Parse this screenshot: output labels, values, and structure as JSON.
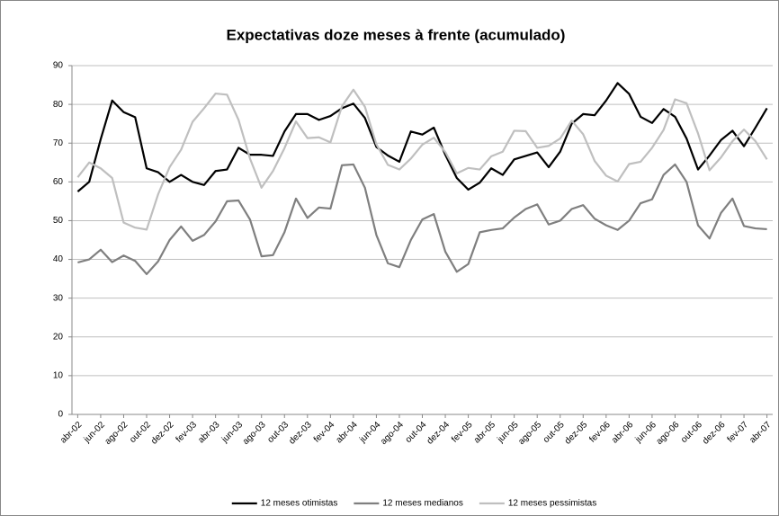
{
  "chart_data": {
    "type": "line",
    "title": "Expectativas doze meses à frente (acumulado)",
    "categories": [
      "abr-02",
      null,
      "jun-02",
      null,
      "ago-02",
      null,
      "out-02",
      null,
      "dez-02",
      null,
      "fev-03",
      null,
      "abr-03",
      null,
      "jun-03",
      null,
      "ago-03",
      null,
      "out-03",
      null,
      "dez-03",
      null,
      "fev-04",
      null,
      "abr-04",
      null,
      "jun-04",
      null,
      "ago-04",
      null,
      "out-04",
      null,
      "dez-04",
      null,
      "fev-05",
      null,
      "abr-05",
      null,
      "jun-05",
      null,
      "ago-05",
      null,
      "out-05",
      null,
      "dez-05",
      null,
      "fev-06",
      null,
      "abr-06",
      null,
      "jun-06",
      null,
      "ago-06",
      null,
      "out-06",
      null,
      "dez-06",
      null,
      "fev-07",
      null,
      "abr-07"
    ],
    "series": [
      {
        "name": "12 meses otimistas",
        "color": "#000000",
        "values": [
          57.5,
          60,
          71,
          81,
          78,
          76.7,
          63.5,
          62.5,
          60,
          61.8,
          60,
          59.2,
          62.8,
          63.2,
          68.8,
          67,
          67,
          66.7,
          73,
          77.5,
          77.5,
          76,
          77,
          79,
          80.2,
          76.5,
          69,
          66.8,
          65.2,
          73,
          72.2,
          74,
          67,
          61,
          58,
          59.8,
          63.5,
          61.8,
          65.8,
          66.7,
          67.6,
          63.8,
          67.8,
          75,
          77.5,
          77.2,
          81,
          85.5,
          82.7,
          76.8,
          75.2,
          78.8,
          76.8,
          71.2,
          63.2,
          66.8,
          70.8,
          73.2,
          69.2,
          74,
          79
        ]
      },
      {
        "name": "12 meses medianos",
        "color": "#7f7f7f",
        "values": [
          39.2,
          40,
          42.5,
          39.3,
          41,
          39.6,
          36.2,
          39.5,
          45,
          48.5,
          44.8,
          46.3,
          49.8,
          55,
          55.2,
          50.3,
          40.8,
          41.1,
          47,
          55.7,
          50.7,
          53.4,
          53.1,
          64.3,
          64.5,
          58.5,
          46.3,
          39,
          38,
          45,
          50.3,
          51.7,
          42,
          36.8,
          38.8,
          47,
          47.6,
          48,
          50.8,
          53,
          54.2,
          49,
          50,
          53,
          54,
          50.5,
          48.8,
          47.6,
          50,
          54.5,
          55.5,
          61.8,
          64.5,
          60,
          48.8,
          45.4,
          52,
          55.7,
          48.6,
          48,
          47.8
        ]
      },
      {
        "name": "12 meses pessimistas",
        "color": "#bfbfbf",
        "values": [
          61.2,
          65,
          63.5,
          61,
          49.5,
          48.2,
          47.7,
          56.8,
          63.8,
          68.3,
          75.5,
          79,
          82.8,
          82.5,
          76,
          66,
          58.5,
          62.8,
          68.7,
          75.6,
          71.3,
          71.5,
          70.2,
          79.5,
          83.8,
          79.4,
          69.7,
          64.4,
          63.2,
          66,
          69.6,
          71.4,
          67.7,
          62.2,
          63.6,
          63.2,
          66.6,
          67.8,
          73.2,
          73.1,
          68.8,
          69.3,
          71.2,
          75.8,
          72.3,
          65.4,
          61.6,
          60.1,
          64.6,
          65.2,
          68.8,
          73.4,
          81.3,
          80.3,
          72.5,
          63,
          66.3,
          70.5,
          73.5,
          70.5,
          65.8
        ]
      }
    ],
    "ylim": [
      0,
      90
    ],
    "yticks": [
      0,
      10,
      20,
      30,
      40,
      50,
      60,
      70,
      80,
      90
    ],
    "grid": true,
    "legend": "bottom"
  }
}
